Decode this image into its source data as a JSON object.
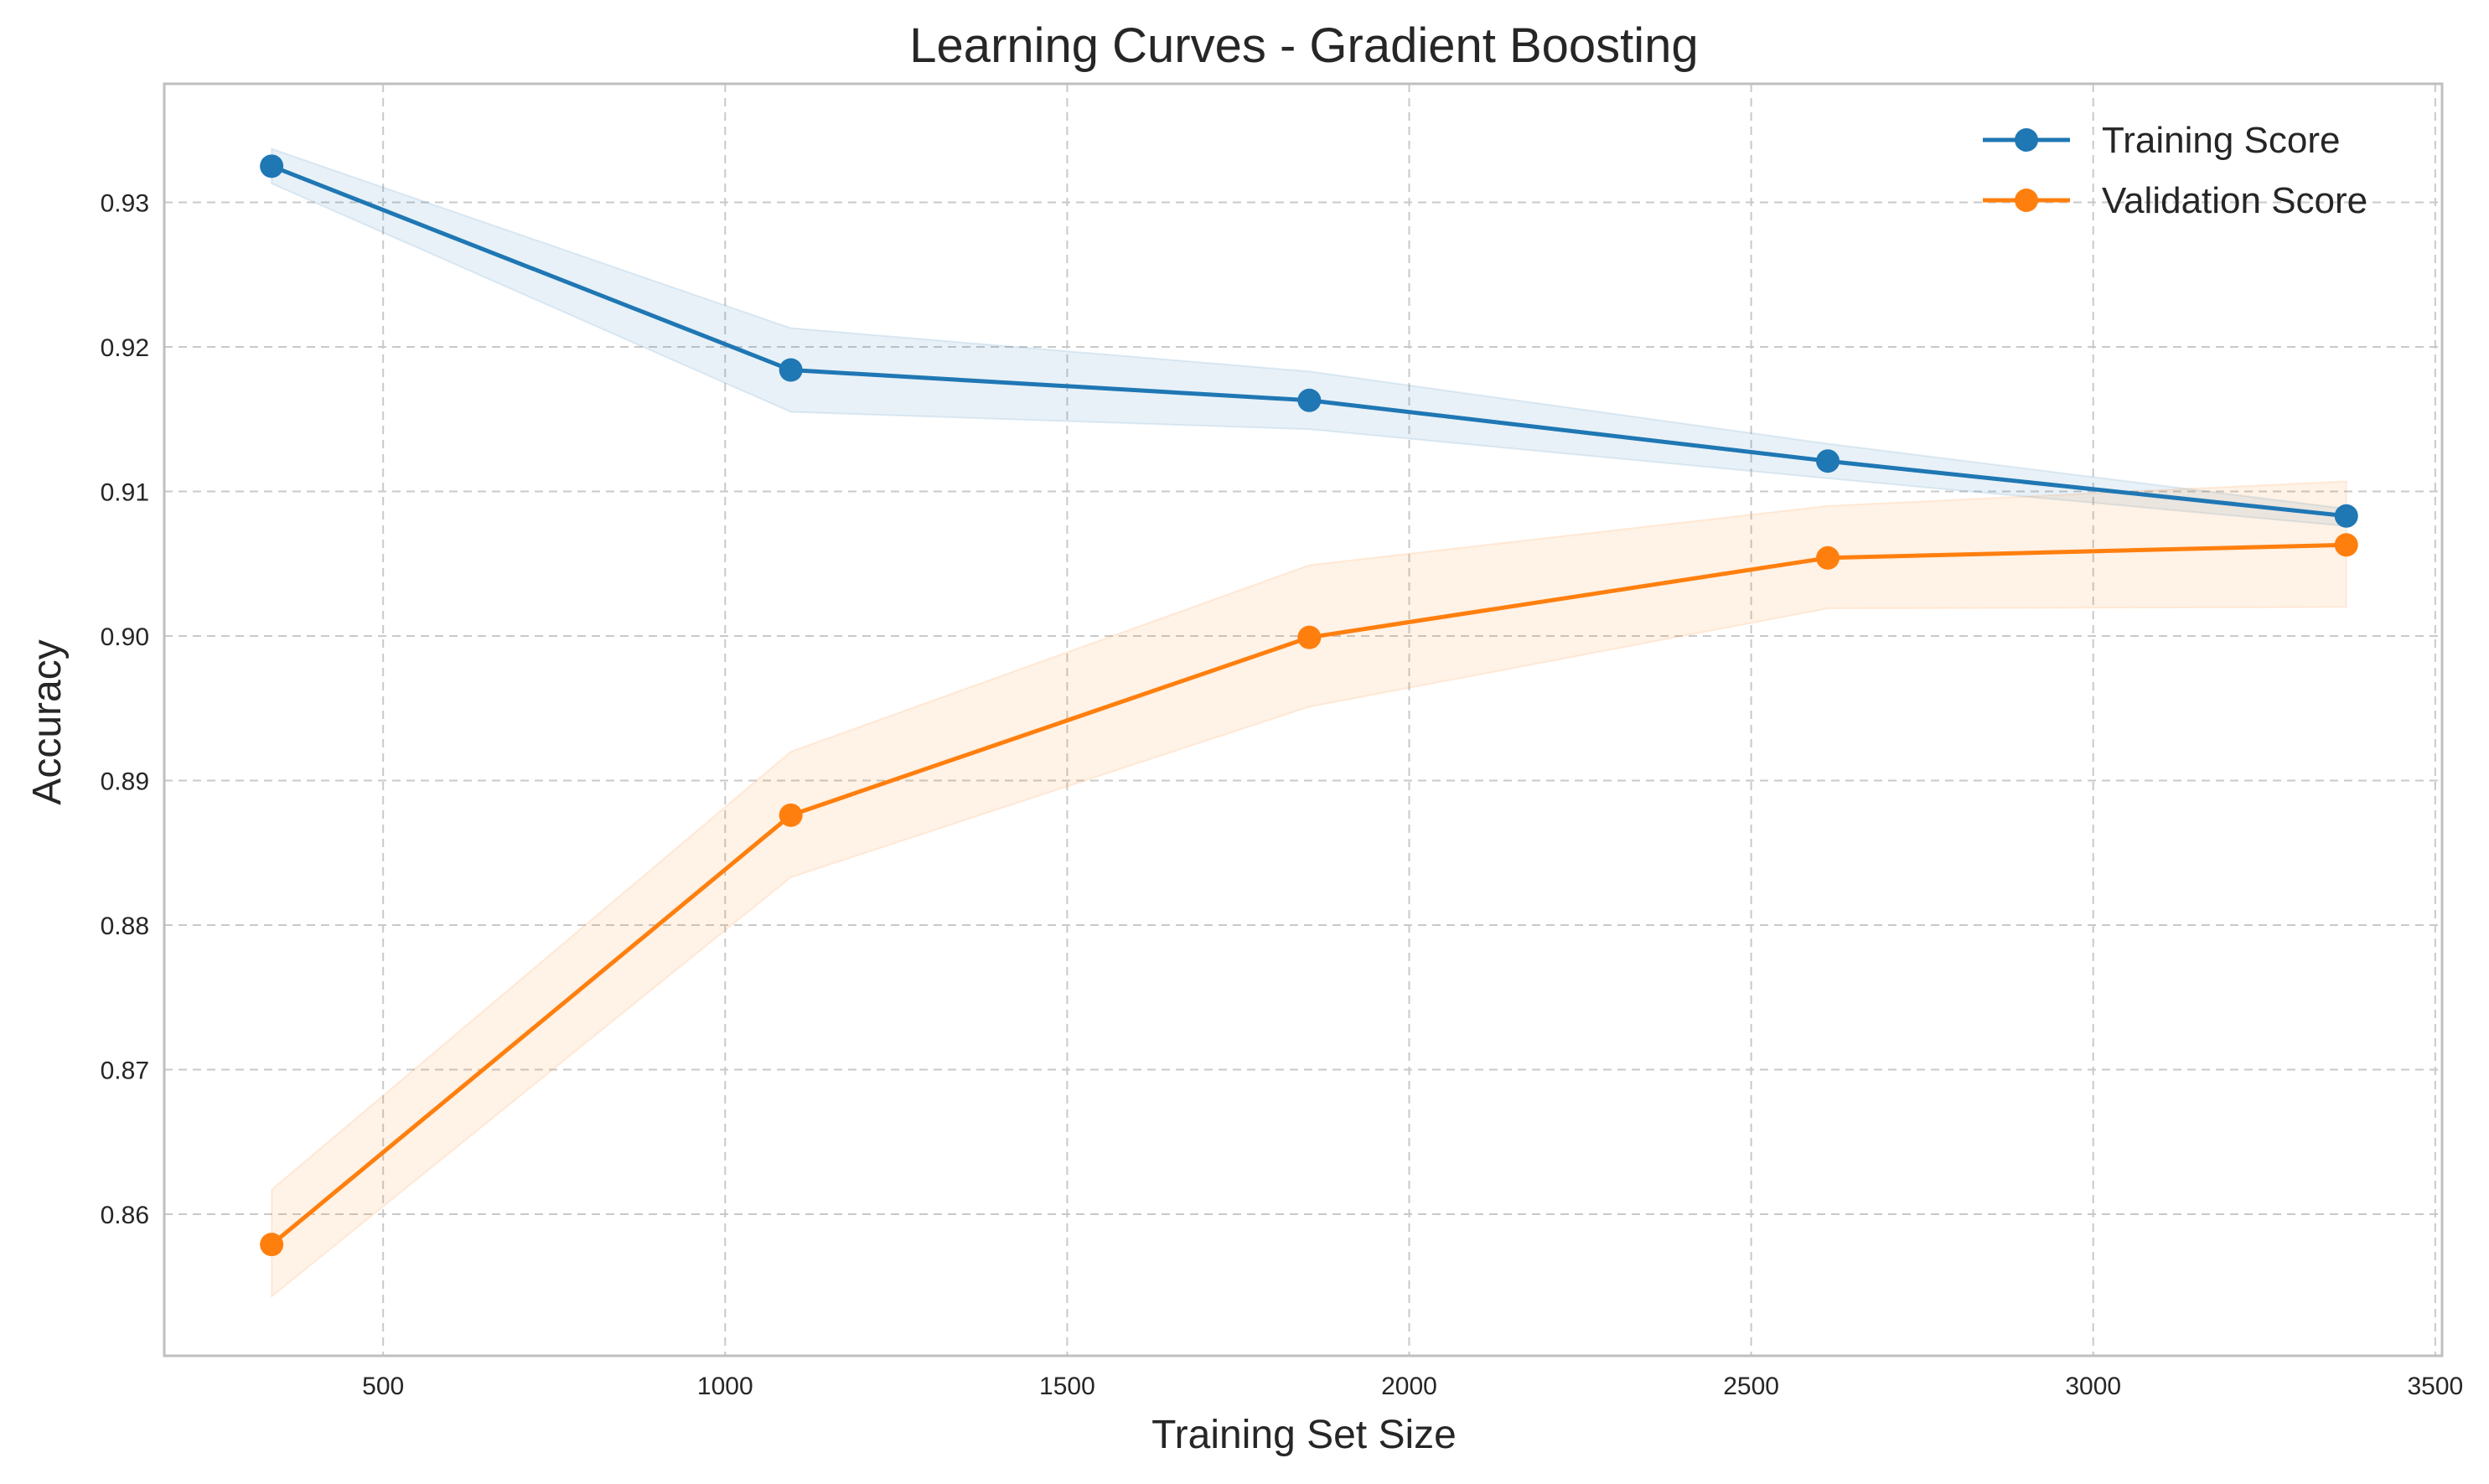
{
  "chart_data": {
    "type": "line",
    "title": "Learning Curves - Gradient Boosting",
    "xlabel": "Training Set Size",
    "ylabel": "Accuracy",
    "xlim": [
      180,
      3510
    ],
    "ylim": [
      0.8502,
      0.9382
    ],
    "x_ticks": [
      500,
      1000,
      1500,
      2000,
      2500,
      3000,
      3500
    ],
    "x_tick_labels": [
      "500",
      "1000",
      "1500",
      "2000",
      "2500",
      "3000",
      "3500"
    ],
    "y_ticks": [
      0.86,
      0.87,
      0.88,
      0.89,
      0.9,
      0.91,
      0.92,
      0.93
    ],
    "y_tick_labels": [
      "0.86",
      "0.87",
      "0.88",
      "0.89",
      "0.90",
      "0.91",
      "0.92",
      "0.93"
    ],
    "grid": true,
    "legend_position": "top-right",
    "x": [
      337,
      1096,
      1854,
      2612,
      3370
    ],
    "series": [
      {
        "name": "Training Score",
        "color": "#1f77b4",
        "values": [
          0.9325,
          0.9184,
          0.9163,
          0.9121,
          0.9083
        ],
        "band_upper": [
          0.9337,
          0.9213,
          0.9183,
          0.9133,
          0.9088
        ],
        "band_lower": [
          0.9313,
          0.9155,
          0.9143,
          0.9109,
          0.9076
        ]
      },
      {
        "name": "Validation Score",
        "color": "#ff7f0e",
        "values": [
          0.8579,
          0.8876,
          0.8999,
          0.9054,
          0.9063
        ],
        "band_upper": [
          0.8617,
          0.892,
          0.9049,
          0.909,
          0.9107
        ],
        "band_lower": [
          0.8543,
          0.8833,
          0.8951,
          0.9019,
          0.902
        ]
      }
    ]
  }
}
